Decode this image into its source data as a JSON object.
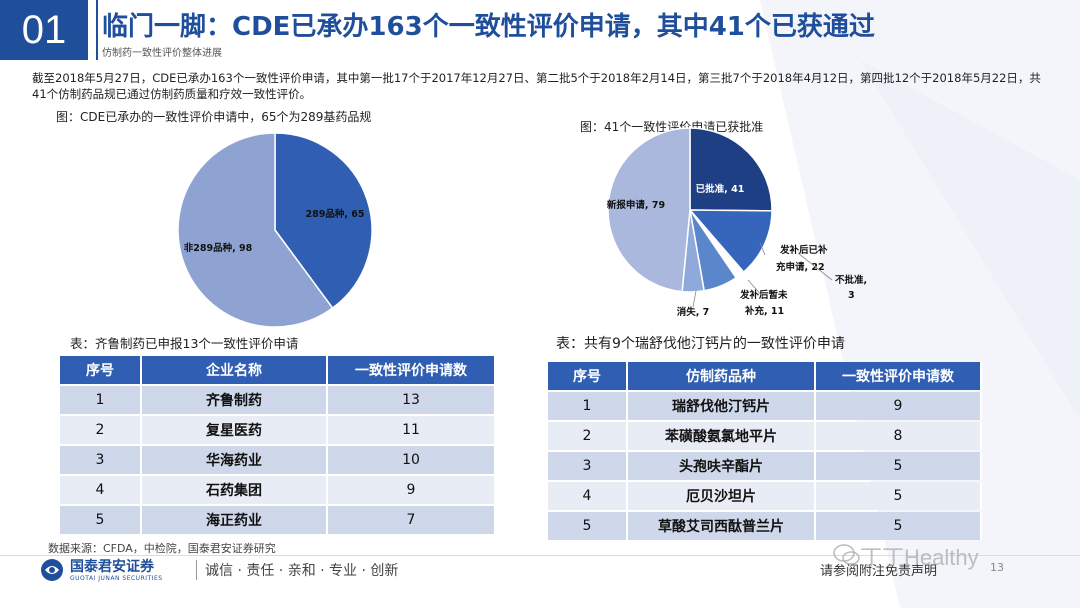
{
  "header": {
    "section_number": "01",
    "title": "临门一脚：CDE已承办163个一致性评价申请，其中41个已获通过",
    "subtitle": "仿制药一致性评价整体进展"
  },
  "intro_text": "截至2018年5月27日，CDE已承办163个一致性评价申请，其中第一批17个于2017年12月27日、第二批5个于2018年2月14日，第三批7个于2018年4月12日，第四批12个于2018年5月22日，共41个仿制药品规已通过仿制药质量和疗效一致性评价。",
  "chart_left": {
    "caption": "图：CDE已承办的一致性评价申请中，65个为289基药品规"
  },
  "chart_right": {
    "caption": "图：41个一致性评价申请已获批准"
  },
  "chart_data": [
    {
      "type": "pie",
      "title": "",
      "slices": [
        {
          "label": "289品种",
          "value": 65,
          "color": "#2f5eb2"
        },
        {
          "label": "非289品种",
          "value": 98,
          "color": "#8fa3d2"
        }
      ],
      "labels_text": [
        "289品种, 65",
        "非289品种, 98"
      ]
    },
    {
      "type": "pie",
      "title": "",
      "slices": [
        {
          "label": "已批准",
          "value": 41,
          "color": "#1f3f85"
        },
        {
          "label": "发补后已补充申请",
          "value": 22,
          "color": "#3566bb"
        },
        {
          "label": "不批准",
          "value": 3,
          "color": "#ffffff"
        },
        {
          "label": "发补后暂未补充",
          "value": 11,
          "color": "#5b86cc"
        },
        {
          "label": "消失",
          "value": 7,
          "color": "#8ea9da"
        },
        {
          "label": "新报申请",
          "value": 79,
          "color": "#a9b8dc"
        }
      ],
      "labels_text": [
        "已批准, 41",
        "发补后已补",
        "充申请, 22",
        "不批准,",
        "3",
        "发补后暂未",
        "补充, 11",
        "消失, 7",
        "新报申请, 79"
      ]
    }
  ],
  "table_left": {
    "caption": "表：齐鲁制药已申报13个一致性评价申请",
    "headers": [
      "序号",
      "企业名称",
      "一致性评价申请数"
    ],
    "rows": [
      [
        "1",
        "齐鲁制药",
        "13"
      ],
      [
        "2",
        "复星医药",
        "11"
      ],
      [
        "3",
        "华海药业",
        "10"
      ],
      [
        "4",
        "石药集团",
        "9"
      ],
      [
        "5",
        "海正药业",
        "7"
      ]
    ]
  },
  "table_right": {
    "caption": "表：共有9个瑞舒伐他汀钙片的一致性评价申请",
    "headers": [
      "序号",
      "仿制药品种",
      "一致性评价申请数"
    ],
    "rows": [
      [
        "1",
        "瑞舒伐他汀钙片",
        "9"
      ],
      [
        "2",
        "苯磺酸氨氯地平片",
        "8"
      ],
      [
        "3",
        "头孢呋辛酯片",
        "5"
      ],
      [
        "4",
        "厄贝沙坦片",
        "5"
      ],
      [
        "5",
        "草酸艾司西酞普兰片",
        "5"
      ]
    ]
  },
  "source": "数据来源：CFDA，中检院，国泰君安证券研究",
  "footer": {
    "logo_cn": "国泰君安证券",
    "logo_en": "GUOTAI JUNAN SECURITIES",
    "slogan": "诚信 · 责任 · 亲和 · 专业 · 创新",
    "disclaimer": "请参阅附注免责声明",
    "page": "13",
    "watermark": "丁丁Healthy"
  },
  "colors": {
    "brand": "#1f4e9b",
    "table_header": "#2f5eb2",
    "row_odd": "#cfd7ea",
    "row_even": "#e8ecf5"
  }
}
